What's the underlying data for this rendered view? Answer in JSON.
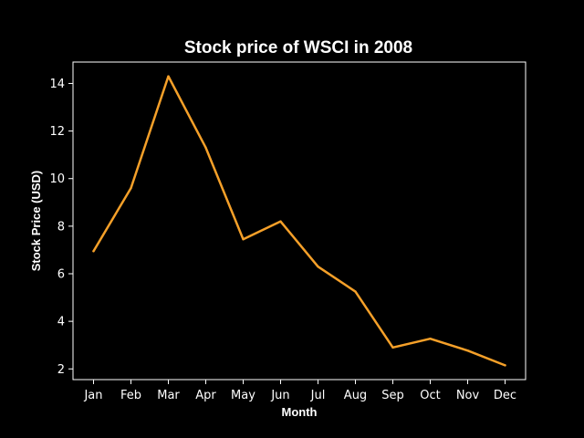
{
  "chart_data": {
    "type": "line",
    "title": "Stock price of WSCI in 2008",
    "xlabel": "Month",
    "ylabel": "Stock Price (USD)",
    "categories": [
      "Jan",
      "Feb",
      "Mar",
      "Apr",
      "May",
      "Jun",
      "Jul",
      "Aug",
      "Sep",
      "Oct",
      "Nov",
      "Dec"
    ],
    "series": [
      {
        "values": [
          6.95,
          9.6,
          14.3,
          11.3,
          7.45,
          8.2,
          6.3,
          5.25,
          2.9,
          3.27,
          2.77,
          2.15
        ]
      }
    ],
    "yticks": [
      2,
      4,
      6,
      8,
      10,
      12,
      14
    ],
    "ylim": [
      1.55,
      14.9
    ],
    "grid": false,
    "colors": {
      "background": "#000000",
      "axes": "#ffffff",
      "line": "#f5a029"
    }
  }
}
